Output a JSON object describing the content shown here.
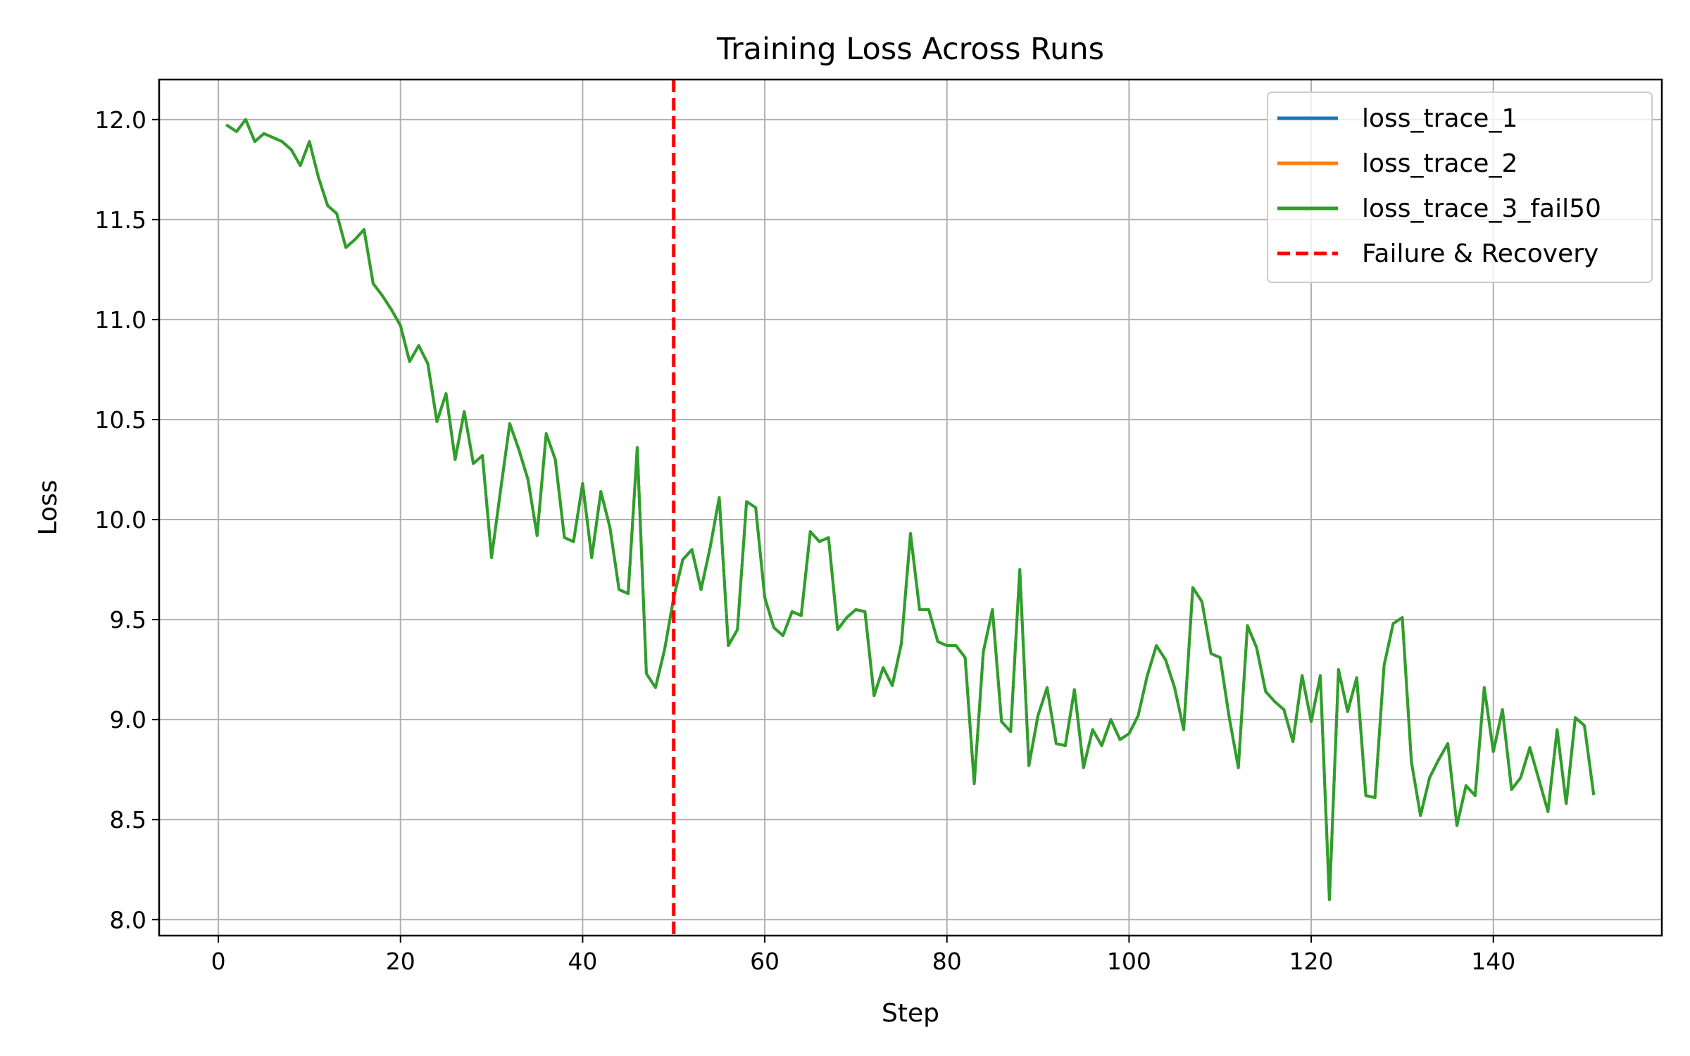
{
  "chart_data": {
    "type": "line",
    "title": "Training Loss Across Runs",
    "xlabel": "Step",
    "ylabel": "Loss",
    "xlim": [
      -6.5,
      158.5
    ],
    "ylim": [
      7.92,
      12.2
    ],
    "xticks": [
      0,
      20,
      40,
      60,
      80,
      100,
      120,
      140
    ],
    "yticks": [
      8.0,
      8.5,
      9.0,
      9.5,
      10.0,
      10.5,
      11.0,
      11.5,
      12.0
    ],
    "ytick_labels": [
      "8.0",
      "8.5",
      "9.0",
      "9.5",
      "10.0",
      "10.5",
      "11.0",
      "11.5",
      "12.0"
    ],
    "grid": true,
    "legend_position": "top-right",
    "colors": {
      "loss_trace_1": "#1f77b4",
      "loss_trace_2": "#ff7f0e",
      "loss_trace_3_fail50": "#2ca02c",
      "failure_line": "#ff0000"
    },
    "x": [
      1,
      2,
      3,
      4,
      5,
      6,
      7,
      8,
      9,
      10,
      11,
      12,
      13,
      14,
      15,
      16,
      17,
      18,
      19,
      20,
      21,
      22,
      23,
      24,
      25,
      26,
      27,
      28,
      29,
      30,
      31,
      32,
      33,
      34,
      35,
      36,
      37,
      38,
      39,
      40,
      41,
      42,
      43,
      44,
      45,
      46,
      47,
      48,
      49,
      50,
      51,
      52,
      53,
      54,
      55,
      56,
      57,
      58,
      59,
      60,
      61,
      62,
      63,
      64,
      65,
      66,
      67,
      68,
      69,
      70,
      71,
      72,
      73,
      74,
      75,
      76,
      77,
      78,
      79,
      80,
      81,
      82,
      83,
      84,
      85,
      86,
      87,
      88,
      89,
      90,
      91,
      92,
      93,
      94,
      95,
      96,
      97,
      98,
      99,
      100,
      101,
      102,
      103,
      104,
      105,
      106,
      107,
      108,
      109,
      110,
      111,
      112,
      113,
      114,
      115,
      116,
      117,
      118,
      119,
      120,
      121,
      122,
      123,
      124,
      125,
      126,
      127,
      128,
      129,
      130,
      131,
      132,
      133,
      134,
      135,
      136,
      137,
      138,
      139,
      140,
      141,
      142,
      143,
      144,
      145,
      146,
      147,
      148,
      149,
      150,
      151
    ],
    "series": [
      {
        "name": "loss_trace_1",
        "values": [
          11.97,
          11.94,
          12.0,
          11.89,
          11.93,
          11.91,
          11.89,
          11.85,
          11.77,
          11.89,
          11.71,
          11.57,
          11.53,
          11.36,
          11.4,
          11.45,
          11.18,
          11.12,
          11.05,
          10.97,
          10.79,
          10.87,
          10.78,
          10.49,
          10.63,
          10.3,
          10.54,
          10.28,
          10.32,
          9.81,
          10.15,
          10.48,
          10.35,
          10.2,
          9.92,
          10.43,
          10.3,
          9.91,
          9.89,
          10.18,
          9.81,
          10.14,
          9.96,
          9.65,
          9.63,
          10.36,
          9.23,
          9.16,
          9.35,
          9.61,
          9.8,
          9.85,
          9.65,
          9.86,
          10.11,
          9.37,
          9.45,
          10.09,
          10.06,
          9.61,
          9.46,
          9.42,
          9.54,
          9.52,
          9.94,
          9.89,
          9.91,
          9.45,
          9.51,
          9.55,
          9.54,
          9.12,
          9.26,
          9.17,
          9.38,
          9.93,
          9.55,
          9.55,
          9.39,
          9.37,
          9.37,
          9.31,
          8.68,
          9.34,
          9.55,
          8.99,
          8.94,
          9.75,
          8.77,
          9.02,
          9.16,
          8.88,
          8.87,
          9.15,
          8.76,
          8.95,
          8.87,
          9.0,
          8.9,
          8.93,
          9.02,
          9.22,
          9.37,
          9.3,
          9.16,
          8.95,
          9.66,
          9.59,
          9.33,
          9.31,
          9.01,
          8.76,
          9.47,
          9.36,
          9.14,
          9.09,
          9.05,
          8.89,
          9.22,
          8.99,
          9.22,
          8.1,
          9.25,
          9.04,
          9.21,
          8.62,
          8.61,
          9.27,
          9.48,
          9.51,
          8.79,
          8.52,
          8.71,
          8.8,
          8.88,
          8.47,
          8.67,
          8.62,
          9.16,
          8.84,
          9.05,
          8.65,
          8.71,
          8.86,
          8.7,
          8.54,
          8.95,
          8.58,
          9.01,
          8.97,
          8.63
        ]
      },
      {
        "name": "loss_trace_2",
        "values": [
          11.97,
          11.94,
          12.0,
          11.89,
          11.93,
          11.91,
          11.89,
          11.85,
          11.77,
          11.89,
          11.71,
          11.57,
          11.53,
          11.36,
          11.4,
          11.45,
          11.18,
          11.12,
          11.05,
          10.97,
          10.79,
          10.87,
          10.78,
          10.49,
          10.63,
          10.3,
          10.54,
          10.28,
          10.32,
          9.81,
          10.15,
          10.48,
          10.35,
          10.2,
          9.92,
          10.43,
          10.3,
          9.91,
          9.89,
          10.18,
          9.81,
          10.14,
          9.96,
          9.65,
          9.63,
          10.36,
          9.23,
          9.16,
          9.35,
          9.61,
          9.8,
          9.85,
          9.65,
          9.86,
          10.11,
          9.37,
          9.45,
          10.09,
          10.06,
          9.61,
          9.46,
          9.42,
          9.54,
          9.52,
          9.94,
          9.89,
          9.91,
          9.45,
          9.51,
          9.55,
          9.54,
          9.12,
          9.26,
          9.17,
          9.38,
          9.93,
          9.55,
          9.55,
          9.39,
          9.37,
          9.37,
          9.31,
          8.68,
          9.34,
          9.55,
          8.99,
          8.94,
          9.75,
          8.77,
          9.02,
          9.16,
          8.88,
          8.87,
          9.15,
          8.76,
          8.95,
          8.87,
          9.0,
          8.9,
          8.93,
          9.02,
          9.22,
          9.37,
          9.3,
          9.16,
          8.95,
          9.66,
          9.59,
          9.33,
          9.31,
          9.01,
          8.76,
          9.47,
          9.36,
          9.14,
          9.09,
          9.05,
          8.89,
          9.22,
          8.99,
          9.22,
          8.1,
          9.25,
          9.04,
          9.21,
          8.62,
          8.61,
          9.27,
          9.48,
          9.51,
          8.79,
          8.52,
          8.71,
          8.8,
          8.88,
          8.47,
          8.67,
          8.62,
          9.16,
          8.84,
          9.05,
          8.65,
          8.71,
          8.86,
          8.7,
          8.54,
          8.95,
          8.58,
          9.01,
          8.97,
          8.63
        ]
      },
      {
        "name": "loss_trace_3_fail50",
        "values": [
          11.97,
          11.94,
          12.0,
          11.89,
          11.93,
          11.91,
          11.89,
          11.85,
          11.77,
          11.89,
          11.71,
          11.57,
          11.53,
          11.36,
          11.4,
          11.45,
          11.18,
          11.12,
          11.05,
          10.97,
          10.79,
          10.87,
          10.78,
          10.49,
          10.63,
          10.3,
          10.54,
          10.28,
          10.32,
          9.81,
          10.15,
          10.48,
          10.35,
          10.2,
          9.92,
          10.43,
          10.3,
          9.91,
          9.89,
          10.18,
          9.81,
          10.14,
          9.96,
          9.65,
          9.63,
          10.36,
          9.23,
          9.16,
          9.35,
          9.61,
          9.8,
          9.85,
          9.65,
          9.86,
          10.11,
          9.37,
          9.45,
          10.09,
          10.06,
          9.61,
          9.46,
          9.42,
          9.54,
          9.52,
          9.94,
          9.89,
          9.91,
          9.45,
          9.51,
          9.55,
          9.54,
          9.12,
          9.26,
          9.17,
          9.38,
          9.93,
          9.55,
          9.55,
          9.39,
          9.37,
          9.37,
          9.31,
          8.68,
          9.34,
          9.55,
          8.99,
          8.94,
          9.75,
          8.77,
          9.02,
          9.16,
          8.88,
          8.87,
          9.15,
          8.76,
          8.95,
          8.87,
          9.0,
          8.9,
          8.93,
          9.02,
          9.22,
          9.37,
          9.3,
          9.16,
          8.95,
          9.66,
          9.59,
          9.33,
          9.31,
          9.01,
          8.76,
          9.47,
          9.36,
          9.14,
          9.09,
          9.05,
          8.89,
          9.22,
          8.99,
          9.22,
          8.1,
          9.25,
          9.04,
          9.21,
          8.62,
          8.61,
          9.27,
          9.48,
          9.51,
          8.79,
          8.52,
          8.71,
          8.8,
          8.88,
          8.47,
          8.67,
          8.62,
          9.16,
          8.84,
          9.05,
          8.65,
          8.71,
          8.86,
          8.7,
          8.54,
          8.95,
          8.58,
          9.01,
          8.97,
          8.63
        ]
      }
    ],
    "vline": {
      "x": 50,
      "label": "Failure & Recovery",
      "style": "dashed"
    },
    "legend": [
      "loss_trace_1",
      "loss_trace_2",
      "loss_trace_3_fail50",
      "Failure & Recovery"
    ]
  }
}
